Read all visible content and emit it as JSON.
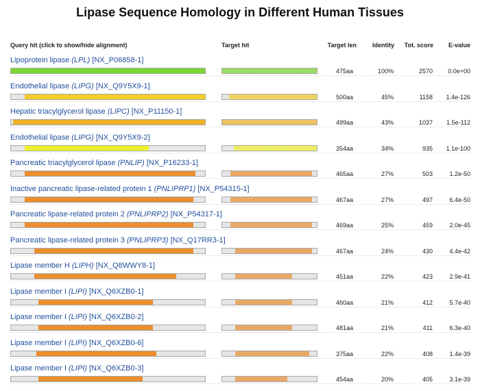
{
  "title": "Lipase Sequence Homology in Different Human Tissues",
  "headers": {
    "query": "Query hit (click to show/hide alignment)",
    "target": "Target hit",
    "len": "Target len",
    "identity": "Identity",
    "score": "Tot. score",
    "evalue": "E-value"
  },
  "rows": [
    {
      "name": "Lipoprotein lipase ",
      "gene": "(LPL)",
      "acc": " [NX_P06858-1]",
      "len": "475aa",
      "identity": "100%",
      "score": "2570",
      "evalue": "0.0e+00",
      "color": "#7bd832",
      "q": [
        0.0,
        1.0
      ],
      "t": [
        0.0,
        1.0
      ]
    },
    {
      "name": "Endothelial lipase ",
      "gene": "(LIPG)",
      "acc": " [NX_Q9Y5X9-1]",
      "len": "500aa",
      "identity": "45%",
      "score": "1158",
      "evalue": "1.4e-126",
      "color": "#f2cc2c",
      "q": [
        0.07,
        1.0
      ],
      "t": [
        0.07,
        1.0
      ]
    },
    {
      "name": "Hepatic triacylglycerol lipase ",
      "gene": "(LIPC)",
      "acc": " [NX_P11150-1]",
      "len": "499aa",
      "identity": "43%",
      "score": "1037",
      "evalue": "1.5e-112",
      "color": "#eeb22a",
      "q": [
        0.01,
        1.0
      ],
      "t": [
        0.0,
        1.0
      ]
    },
    {
      "name": "Endothelial lipase ",
      "gene": "(LIPG)",
      "acc": " [NX_Q9Y5X9-2]",
      "len": "354aa",
      "identity": "34%",
      "score": "935",
      "evalue": "1.1e-100",
      "color": "#eef02c",
      "q": [
        0.07,
        0.71
      ],
      "t": [
        0.12,
        1.0
      ]
    },
    {
      "name": "Pancreatic triacylglycerol lipase ",
      "gene": "(PNLIP)",
      "acc": " [NX_P16233-1]",
      "len": "465aa",
      "identity": "27%",
      "score": "503",
      "evalue": "1.2e-50",
      "color": "#ea8e2e",
      "q": [
        0.07,
        0.95
      ],
      "t": [
        0.09,
        0.95
      ]
    },
    {
      "name": "Inactive pancreatic lipase-related protein 1 ",
      "gene": "(PNLIPRP1)",
      "acc": " [NX_P54315-1]",
      "len": "467aa",
      "identity": "27%",
      "score": "497",
      "evalue": "6.4e-50",
      "color": "#ea8e2e",
      "q": [
        0.07,
        0.94
      ],
      "t": [
        0.09,
        0.95
      ]
    },
    {
      "name": "Pancreatic lipase-related protein 2 ",
      "gene": "(PNLIPRP2)",
      "acc": " [NX_P54317-1]",
      "len": "469aa",
      "identity": "25%",
      "score": "459",
      "evalue": "2.0e-45",
      "color": "#ea8e2e",
      "q": [
        0.07,
        0.94
      ],
      "t": [
        0.09,
        0.95
      ]
    },
    {
      "name": "Pancreatic lipase-related protein 3 ",
      "gene": "(PNLIPRP3)",
      "acc": " [NX_Q17RR3-1]",
      "len": "467aa",
      "identity": "24%",
      "score": "430",
      "evalue": "4.4e-42",
      "color": "#ea8e2e",
      "q": [
        0.12,
        0.94
      ],
      "t": [
        0.14,
        0.95
      ]
    },
    {
      "name": "Lipase member H ",
      "gene": "(LIPH)",
      "acc": " [NX_Q8WWY8-1]",
      "len": "451aa",
      "identity": "22%",
      "score": "423",
      "evalue": "2.9e-41",
      "color": "#ea8e2e",
      "q": [
        0.12,
        0.85
      ],
      "t": [
        0.14,
        0.74
      ]
    },
    {
      "name": "Lipase member I ",
      "gene": "(LIPI)",
      "acc": " [NX_Q6XZB0-1]",
      "len": "460aa",
      "identity": "21%",
      "score": "412",
      "evalue": "5.7e-40",
      "color": "#ea8e2e",
      "q": [
        0.14,
        0.73
      ],
      "t": [
        0.14,
        0.74
      ]
    },
    {
      "name": "Lipase member I ",
      "gene": "(LIPI)",
      "acc": " [NX_Q6XZB0-2]",
      "len": "481aa",
      "identity": "21%",
      "score": "411",
      "evalue": "6.3e-40",
      "color": "#ea8e2e",
      "q": [
        0.14,
        0.73
      ],
      "t": [
        0.14,
        0.74
      ]
    },
    {
      "name": "Lipase member I ",
      "gene": "(LIPI)",
      "acc": " [NX_Q6XZB0-6]",
      "len": "375aa",
      "identity": "22%",
      "score": "408",
      "evalue": "1.4e-39",
      "color": "#ea8e2e",
      "q": [
        0.13,
        0.75
      ],
      "t": [
        0.14,
        0.92
      ]
    },
    {
      "name": "Lipase member I ",
      "gene": "(LIPI)",
      "acc": " [NX_Q6XZB0-3]",
      "len": "454aa",
      "identity": "20%",
      "score": "405",
      "evalue": "3.1e-39",
      "color": "#ea8e2e",
      "q": [
        0.14,
        0.68
      ],
      "t": [
        0.14,
        0.69
      ]
    }
  ]
}
